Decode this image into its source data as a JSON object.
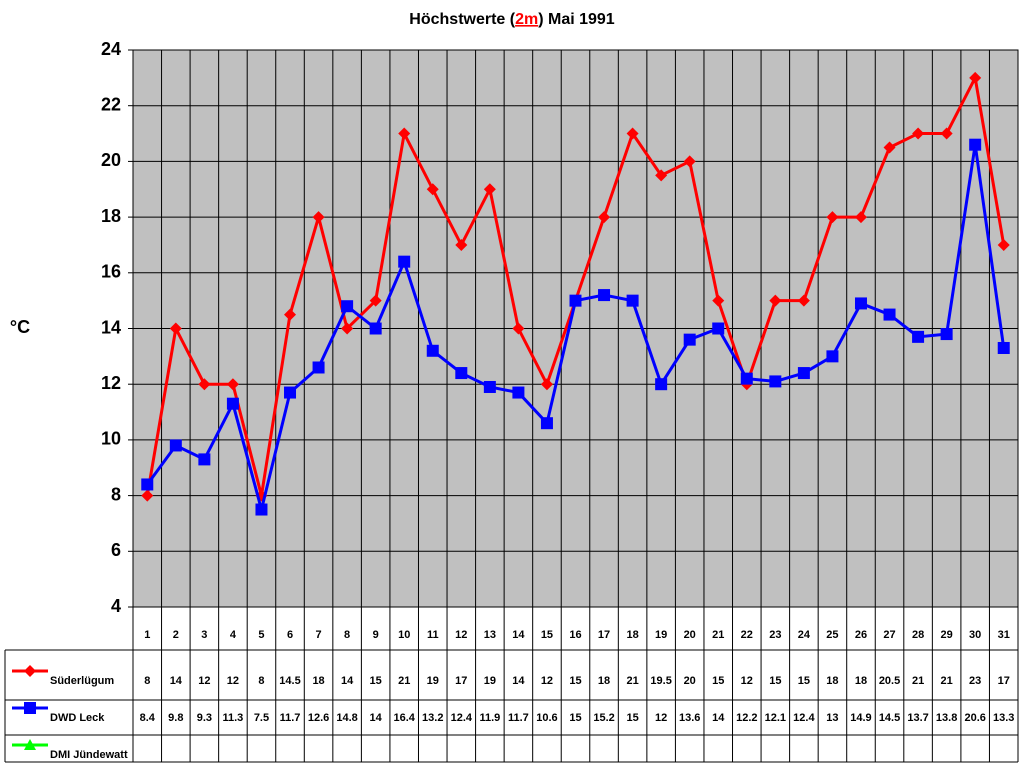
{
  "chart_data": {
    "type": "line",
    "title_parts": [
      "Höchstwerte (",
      "2m",
      ") Mai 1991"
    ],
    "y_label": "°C",
    "categories": [
      "1",
      "2",
      "3",
      "4",
      "5",
      "6",
      "7",
      "8",
      "9",
      "10",
      "11",
      "12",
      "13",
      "14",
      "15",
      "16",
      "17",
      "18",
      "19",
      "20",
      "21",
      "22",
      "23",
      "24",
      "25",
      "26",
      "27",
      "28",
      "29",
      "30",
      "31"
    ],
    "ylim": [
      4,
      24
    ],
    "yticks": [
      4,
      6,
      8,
      10,
      12,
      14,
      16,
      18,
      20,
      22,
      24
    ],
    "grid": true,
    "series": [
      {
        "name": "Süderlügum",
        "color": "#ff0000",
        "marker": "diamond",
        "values": [
          8,
          14,
          12,
          12,
          8,
          14.5,
          18,
          14,
          15,
          21,
          19,
          17,
          19,
          14,
          12,
          15,
          18,
          21,
          19.5,
          20,
          15,
          12,
          15,
          15,
          18,
          18,
          20.5,
          21,
          21,
          23,
          17
        ]
      },
      {
        "name": "DWD Leck",
        "color": "#0000ff",
        "marker": "square",
        "values": [
          8.4,
          9.8,
          9.3,
          11.3,
          7.5,
          11.7,
          12.6,
          14.8,
          14,
          16.4,
          13.2,
          12.4,
          11.9,
          11.7,
          10.6,
          15,
          15.2,
          15,
          12,
          13.6,
          14,
          12.2,
          12.1,
          12.4,
          13,
          14.9,
          14.5,
          13.7,
          13.8,
          20.6,
          13.3
        ]
      },
      {
        "name": "DMI Jündewatt",
        "color": "#00ff00",
        "marker": "triangle",
        "values": [
          null,
          null,
          null,
          null,
          null,
          null,
          null,
          null,
          null,
          null,
          null,
          null,
          null,
          null,
          null,
          null,
          null,
          null,
          null,
          null,
          null,
          null,
          null,
          null,
          null,
          null,
          null,
          null,
          null,
          null,
          null
        ]
      }
    ]
  }
}
